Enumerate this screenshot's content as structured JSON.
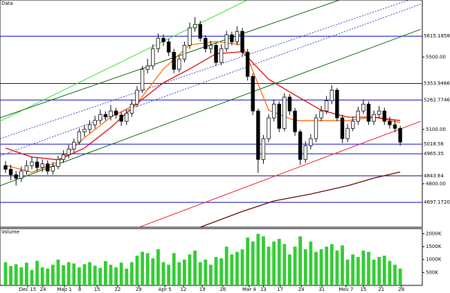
{
  "chart_data": [
    {
      "type": "candlestick",
      "title": "Data",
      "x": [
        0,
        1,
        2,
        3,
        4,
        5,
        6,
        7,
        8,
        9,
        10,
        11,
        12,
        13,
        14,
        15,
        16,
        17,
        18,
        19,
        20,
        21,
        22,
        23,
        24,
        25,
        26,
        27,
        28,
        29,
        30,
        31,
        32,
        33,
        34,
        35,
        36,
        37,
        38,
        39,
        40,
        41,
        42,
        43,
        44,
        45,
        46,
        47,
        48,
        49,
        50,
        51,
        52,
        53,
        54,
        55,
        56,
        57,
        58,
        59,
        60,
        61,
        62,
        63,
        64,
        65,
        66,
        67,
        68,
        69,
        70,
        71,
        72,
        73,
        74,
        75
      ],
      "open": [
        4900,
        4880,
        4850,
        4830,
        4870,
        4900,
        4920,
        4890,
        4910,
        4870,
        4895,
        4934,
        4960,
        4992,
        5030,
        5087,
        5100,
        5126,
        5150,
        5183,
        5170,
        5202,
        5180,
        5145,
        5190,
        5240,
        5317,
        5432,
        5451,
        5546,
        5604,
        5584,
        5527,
        5432,
        5489,
        5565,
        5661,
        5680,
        5604,
        5546,
        5565,
        5470,
        5546,
        5623,
        5584,
        5642,
        5527,
        5393,
        5202,
        4934,
        5049,
        5164,
        5240,
        5106,
        5279,
        5202,
        5087,
        4934,
        5010,
        5049,
        5164,
        5202,
        5259,
        5317,
        5164,
        5049,
        5106,
        5145,
        5202,
        5240,
        5145,
        5183,
        5202,
        5145,
        5126,
        5106
      ],
      "high": [
        4925,
        4905,
        4870,
        4895,
        4930,
        4950,
        4945,
        4935,
        4930,
        4920,
        4955,
        4985,
        5015,
        5050,
        5105,
        5125,
        5150,
        5175,
        5210,
        5200,
        5235,
        5220,
        5195,
        5210,
        5265,
        5340,
        5450,
        5490,
        5570,
        5630,
        5625,
        5600,
        5545,
        5510,
        5585,
        5690,
        5720,
        5700,
        5620,
        5590,
        5580,
        5570,
        5645,
        5640,
        5670,
        5660,
        5545,
        5410,
        5215,
        5070,
        5185,
        5265,
        5255,
        5300,
        5295,
        5220,
        5100,
        5035,
        5075,
        5185,
        5230,
        5285,
        5345,
        5330,
        5180,
        5130,
        5170,
        5225,
        5265,
        5255,
        5205,
        5230,
        5220,
        5170,
        5150,
        5120
      ],
      "low": [
        4860,
        4820,
        4790,
        4810,
        4850,
        4880,
        4870,
        4865,
        4850,
        4850,
        4880,
        4915,
        4940,
        4975,
        5015,
        5060,
        5080,
        5105,
        5130,
        5150,
        5150,
        5160,
        5120,
        5125,
        5170,
        5225,
        5300,
        5410,
        5430,
        5525,
        5560,
        5505,
        5410,
        5415,
        5470,
        5545,
        5640,
        5585,
        5525,
        5520,
        5450,
        5455,
        5530,
        5565,
        5565,
        5505,
        5370,
        5180,
        4860,
        4910,
        5030,
        5145,
        5085,
        5090,
        5180,
        5065,
        4905,
        4915,
        4990,
        5030,
        5145,
        5185,
        5240,
        5145,
        5025,
        5030,
        5090,
        5125,
        5185,
        5125,
        5125,
        5165,
        5125,
        5105,
        5085,
        5010
      ],
      "close": [
        4880,
        4850,
        4830,
        4870,
        4900,
        4920,
        4890,
        4910,
        4870,
        4895,
        4934,
        4960,
        4992,
        5030,
        5087,
        5100,
        5126,
        5150,
        5183,
        5170,
        5202,
        5180,
        5145,
        5190,
        5240,
        5317,
        5432,
        5451,
        5546,
        5604,
        5584,
        5527,
        5432,
        5489,
        5565,
        5661,
        5680,
        5604,
        5546,
        5565,
        5470,
        5546,
        5623,
        5584,
        5642,
        5527,
        5393,
        5202,
        4934,
        5049,
        5164,
        5240,
        5106,
        5279,
        5202,
        5087,
        4934,
        5010,
        5049,
        5164,
        5202,
        5259,
        5317,
        5164,
        5049,
        5106,
        5145,
        5202,
        5240,
        5145,
        5183,
        5202,
        5145,
        5126,
        5106,
        5030
      ],
      "xlim": [
        -1.05,
        79.2
      ],
      "ylim": [
        4560,
        5815
      ],
      "yticks": [
        {
          "value": 5500,
          "label": "5500.00"
        },
        {
          "value": 5100,
          "label": "5100.00"
        },
        {
          "value": 4800,
          "label": "4800.00"
        }
      ],
      "levels": [
        {
          "value": 5615.1858,
          "label": "5615.1858",
          "color": "#0000cc"
        },
        {
          "value": 5353.9466,
          "label": "5353.9466",
          "color": "#0000cc"
        },
        {
          "value": 5262.7746,
          "label": "5262.7746",
          "color": "#0000cc"
        },
        {
          "value": 5018.56,
          "label": "5018.56",
          "color": "#0000cc"
        },
        {
          "value": 4965.35,
          "label": "4965.35",
          "color": "#0000cc"
        },
        {
          "value": 4843.64,
          "label": "4843.64",
          "color": "#000080"
        },
        {
          "value": 4697.172,
          "label": "4697.1720",
          "color": "#0000cc"
        }
      ],
      "lines": [
        {
          "color": "#33dd33",
          "dash": false,
          "x": [
            -1.05,
            45.9
          ],
          "values": [
            5145,
            5814
          ]
        },
        {
          "color": "#006600",
          "dash": false,
          "x": [
            -1.05,
            63.4
          ],
          "values": [
            5164,
            5814
          ]
        },
        {
          "color": "#006600",
          "dash": false,
          "x": [
            -1.05,
            78.9
          ],
          "values": [
            4789,
            5653
          ]
        },
        {
          "color": "#3333cc",
          "dash": true,
          "x": [
            -1.05,
            76.6
          ],
          "values": [
            5049,
            5814
          ]
        },
        {
          "color": "#3333cc",
          "dash": true,
          "x": [
            -1.05,
            79.2
          ],
          "values": [
            4954,
            5795
          ]
        },
        {
          "color": "#ee2222",
          "dash": false,
          "x": [
            25.3,
            78.9
          ],
          "values": [
            4559,
            5145
          ]
        }
      ],
      "series": [
        {
          "color": "#ff6600",
          "x": [
            0,
            5,
            10,
            15,
            20,
            25,
            30,
            35,
            40,
            45,
            50,
            55,
            60,
            65,
            70,
            75
          ],
          "values": [
            4902,
            4863,
            4921,
            5054,
            5168,
            5244,
            5434,
            5567,
            5586,
            5567,
            5206,
            5149,
            5149,
            5149,
            5168,
            5138
          ]
        },
        {
          "color": "#dd0000",
          "x": [
            0,
            5,
            10,
            15,
            20,
            25,
            30,
            35,
            40,
            45,
            50,
            55,
            60,
            65,
            70,
            75
          ],
          "values": [
            4997,
            4948,
            4932,
            4997,
            5111,
            5244,
            5358,
            5434,
            5518,
            5529,
            5377,
            5290,
            5206,
            5168,
            5168,
            5149
          ]
        },
        {
          "color": "#660000",
          "x": [
            37,
            45,
            51,
            58,
            65,
            70,
            75
          ],
          "values": [
            4560,
            4647,
            4705,
            4743,
            4789,
            4831,
            4865
          ]
        }
      ],
      "xticks": [
        {
          "value": 4.2,
          "label": "Dec 15"
        },
        {
          "value": 7.1,
          "label": "24"
        },
        {
          "value": 11.2,
          "label": "Map 1"
        },
        {
          "value": 14.1,
          "label": "8"
        },
        {
          "value": 17.4,
          "label": "15"
        },
        {
          "value": 21.3,
          "label": "22"
        },
        {
          "value": 25.3,
          "label": "29"
        },
        {
          "value": 30.3,
          "label": "Apr 5"
        },
        {
          "value": 33.8,
          "label": "12"
        },
        {
          "value": 37.4,
          "label": "19"
        },
        {
          "value": 41.3,
          "label": "26"
        },
        {
          "value": 46.3,
          "label": "Mar 4"
        },
        {
          "value": 49.0,
          "label": "13"
        },
        {
          "value": 52.2,
          "label": "17"
        },
        {
          "value": 56.2,
          "label": "24"
        },
        {
          "value": 60.1,
          "label": "31"
        },
        {
          "value": 64.7,
          "label": "Mov 7"
        },
        {
          "value": 68.0,
          "label": "15"
        },
        {
          "value": 71.4,
          "label": "21"
        },
        {
          "value": 75.2,
          "label": "28"
        }
      ]
    },
    {
      "type": "bar",
      "title": "Volume",
      "color": "#33cc33",
      "values": [
        900,
        750,
        820,
        700,
        880,
        600,
        950,
        700,
        650,
        800,
        1000,
        780,
        900,
        850,
        700,
        820,
        900,
        760,
        680,
        940,
        800,
        700,
        880,
        650,
        900,
        1150,
        1300,
        1250,
        1050,
        1400,
        900,
        800,
        1250,
        900,
        1000,
        1200,
        1350,
        900,
        1000,
        800,
        1100,
        1050,
        1500,
        1200,
        1300,
        1400,
        1850,
        1700,
        2000,
        1900,
        1500,
        1700,
        1800,
        1600,
        1200,
        1500,
        1900,
        1400,
        1700,
        1300,
        1400,
        1500,
        1600,
        1350,
        1550,
        1000,
        1200,
        1100,
        1350,
        1300,
        1000,
        1100,
        1150,
        950,
        800,
        650
      ],
      "ylim": [
        0,
        2200
      ],
      "yticks": [
        {
          "value": 500,
          "label": "500K"
        },
        {
          "value": 1000,
          "label": "1000K"
        },
        {
          "value": 1500,
          "label": "1500K"
        },
        {
          "value": 2000,
          "label": "2000K"
        }
      ]
    }
  ]
}
